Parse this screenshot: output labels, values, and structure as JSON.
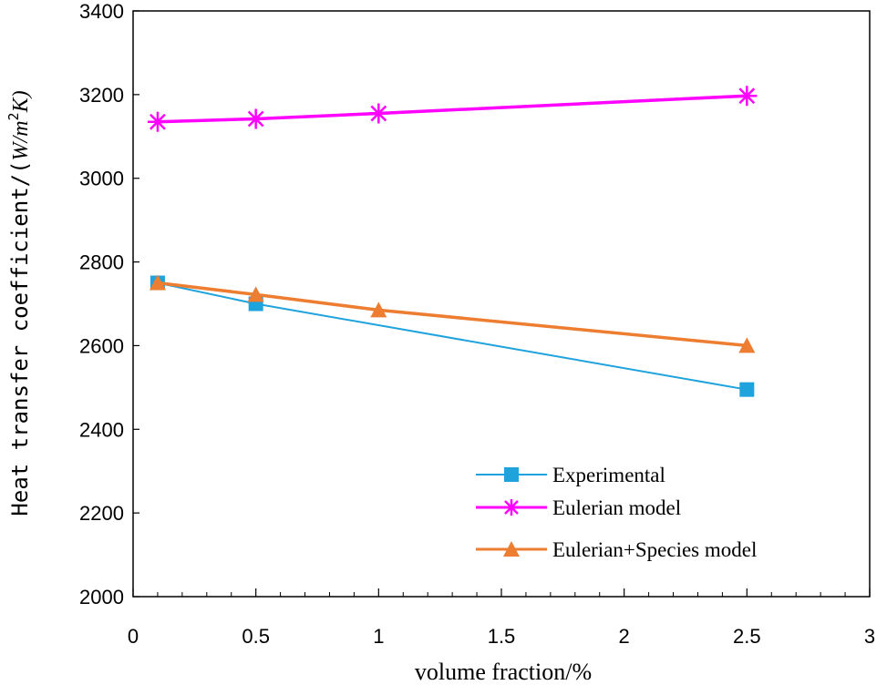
{
  "chart_data": {
    "type": "line",
    "title": "",
    "xlabel": "volume fraction/%",
    "ylabel": "Heat transfer coefficient/(W/m²K)",
    "ylabel_main": "Heat transfer coefficient/(",
    "ylabel_unit_pre": "W/m",
    "ylabel_unit_sup": "2",
    "ylabel_unit_post": "K)",
    "xlim": [
      0,
      3
    ],
    "ylim": [
      2000,
      3400
    ],
    "x_ticks": [
      0,
      0.5,
      1,
      1.5,
      2,
      2.5,
      3
    ],
    "x_tick_labels": [
      "0",
      "0.5",
      "1",
      "1.5",
      "2",
      "2.5",
      "3"
    ],
    "y_ticks": [
      2000,
      2200,
      2400,
      2600,
      2800,
      3000,
      3200,
      3400
    ],
    "y_tick_labels": [
      "2000",
      "2200",
      "2400",
      "2600",
      "2800",
      "3000",
      "3200",
      "3400"
    ],
    "grid": false,
    "legend_position": "bottom-right",
    "series": [
      {
        "name": "Experimental",
        "color": "#1fa3dc",
        "marker": "square",
        "x": [
          0.1,
          0.5,
          2.5
        ],
        "y": [
          2750,
          2700,
          2495
        ]
      },
      {
        "name": "Eulerian model",
        "color": "#ff00ff",
        "marker": "asterisk",
        "x": [
          0.1,
          0.5,
          1,
          2.5
        ],
        "y": [
          3135,
          3142,
          3155,
          3197
        ]
      },
      {
        "name": "Eulerian+Species model",
        "color": "#ed7d31",
        "marker": "triangle",
        "x": [
          0.1,
          0.5,
          1,
          2.5
        ],
        "y": [
          2750,
          2722,
          2685,
          2600
        ]
      }
    ]
  }
}
